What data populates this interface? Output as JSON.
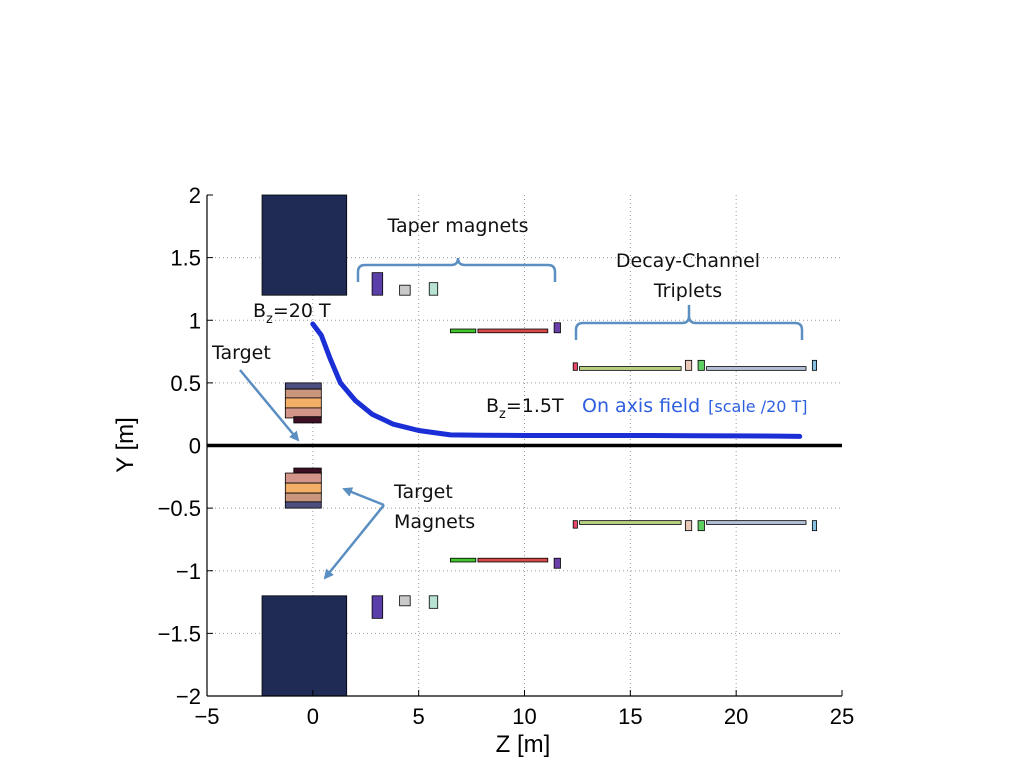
{
  "chart_data": {
    "type": "scatter",
    "xlabel": "Z [m]",
    "ylabel": "Y [m]",
    "xlim": [
      -5,
      25
    ],
    "ylim": [
      -2,
      2
    ],
    "x_ticks": [
      "−5",
      "0",
      "5",
      "10",
      "15",
      "20",
      "25"
    ],
    "y_ticks": [
      "2",
      "1.5",
      "1",
      "0.5",
      "0",
      "−0.5",
      "−1",
      "−1.5",
      "−2"
    ],
    "grid": true,
    "axis_line_y": 0,
    "series": [
      {
        "name": "On axis field",
        "color": "#1b2fd6",
        "x": [
          0,
          0.4,
          0.8,
          1.3,
          2.0,
          2.8,
          3.8,
          5.0,
          6.5,
          8,
          10,
          12,
          14,
          16,
          18,
          20,
          22,
          23
        ],
        "y": [
          0.97,
          0.88,
          0.7,
          0.5,
          0.36,
          0.25,
          0.17,
          0.12,
          0.085,
          0.082,
          0.08,
          0.08,
          0.08,
          0.08,
          0.078,
          0.077,
          0.075,
          0.073
        ]
      }
    ],
    "magnets": [
      {
        "kind": "big-coil",
        "color": "#1f2a55",
        "z0": -2.4,
        "z1": 1.6,
        "y0": 1.2,
        "y1": 2.0
      },
      {
        "kind": "big-coil",
        "color": "#1f2a55",
        "z0": -2.4,
        "z1": 1.6,
        "y0": -2.0,
        "y1": -1.2
      },
      {
        "kind": "target-coil",
        "color": "#4b4f7e",
        "z0": -1.3,
        "z1": 0.4,
        "y0": 0.45,
        "y1": 0.5
      },
      {
        "kind": "target-coil",
        "color": "#c9957d",
        "z0": -1.3,
        "z1": 0.4,
        "y0": 0.38,
        "y1": 0.45
      },
      {
        "kind": "target-coil",
        "color": "#f3ae68",
        "z0": -1.3,
        "z1": 0.4,
        "y0": 0.3,
        "y1": 0.38
      },
      {
        "kind": "target-coil",
        "color": "#d39489",
        "z0": -1.3,
        "z1": 0.4,
        "y0": 0.22,
        "y1": 0.3
      },
      {
        "kind": "target-coil",
        "color": "#3d0f22",
        "z0": -0.9,
        "z1": 0.4,
        "y0": 0.18,
        "y1": 0.23
      },
      {
        "kind": "target-coil",
        "color": "#3d0f22",
        "z0": -0.9,
        "z1": 0.4,
        "y0": -0.23,
        "y1": -0.18
      },
      {
        "kind": "target-coil",
        "color": "#d39489",
        "z0": -1.3,
        "z1": 0.4,
        "y0": -0.3,
        "y1": -0.22
      },
      {
        "kind": "target-coil",
        "color": "#f3ae68",
        "z0": -1.3,
        "z1": 0.4,
        "y0": -0.38,
        "y1": -0.3
      },
      {
        "kind": "target-coil",
        "color": "#c9957d",
        "z0": -1.3,
        "z1": 0.4,
        "y0": -0.45,
        "y1": -0.38
      },
      {
        "kind": "target-coil",
        "color": "#4b4f7e",
        "z0": -1.3,
        "z1": 0.4,
        "y0": -0.5,
        "y1": -0.45
      },
      {
        "kind": "taper",
        "color": "#5a3fa8",
        "z0": 2.8,
        "z1": 3.3,
        "y0": 1.2,
        "y1": 1.38
      },
      {
        "kind": "taper",
        "color": "#c9c9c9",
        "z0": 4.1,
        "z1": 4.6,
        "y0": 1.2,
        "y1": 1.28
      },
      {
        "kind": "taper",
        "color": "#b8e3d2",
        "z0": 5.5,
        "z1": 5.9,
        "y0": 1.2,
        "y1": 1.3
      },
      {
        "kind": "taper",
        "color": "#5a3fa8",
        "z0": 2.8,
        "z1": 3.3,
        "y0": -1.38,
        "y1": -1.2
      },
      {
        "kind": "taper",
        "color": "#c9c9c9",
        "z0": 4.1,
        "z1": 4.6,
        "y0": -1.28,
        "y1": -1.2
      },
      {
        "kind": "taper",
        "color": "#b8e3d2",
        "z0": 5.5,
        "z1": 5.9,
        "y0": -1.3,
        "y1": -1.2
      },
      {
        "kind": "taper",
        "color": "#42c42d",
        "z0": 6.5,
        "z1": 7.7,
        "y0": 0.9,
        "y1": 0.93
      },
      {
        "kind": "taper",
        "color": "#d64a4a",
        "z0": 7.8,
        "z1": 11.1,
        "y0": 0.9,
        "y1": 0.93
      },
      {
        "kind": "taper",
        "color": "#6a3fa8",
        "z0": 11.4,
        "z1": 11.7,
        "y0": 0.9,
        "y1": 0.98
      },
      {
        "kind": "taper",
        "color": "#42c42d",
        "z0": 6.5,
        "z1": 7.7,
        "y0": -0.93,
        "y1": -0.9
      },
      {
        "kind": "taper",
        "color": "#d64a4a",
        "z0": 7.8,
        "z1": 11.1,
        "y0": -0.93,
        "y1": -0.9
      },
      {
        "kind": "taper",
        "color": "#6a3fa8",
        "z0": 11.4,
        "z1": 11.7,
        "y0": -0.98,
        "y1": -0.9
      },
      {
        "kind": "triplet",
        "color": "#e8496b",
        "z0": 12.3,
        "z1": 12.5,
        "y0": 0.6,
        "y1": 0.66
      },
      {
        "kind": "triplet",
        "color": "#b9d17e",
        "z0": 12.6,
        "z1": 17.4,
        "y0": 0.6,
        "y1": 0.63
      },
      {
        "kind": "triplet",
        "color": "#e8c8b8",
        "z0": 17.6,
        "z1": 17.9,
        "y0": 0.6,
        "y1": 0.68
      },
      {
        "kind": "triplet",
        "color": "#5fcf64",
        "z0": 18.2,
        "z1": 18.5,
        "y0": 0.6,
        "y1": 0.68
      },
      {
        "kind": "triplet",
        "color": "#b3bfd6",
        "z0": 18.6,
        "z1": 23.3,
        "y0": 0.6,
        "y1": 0.63
      },
      {
        "kind": "triplet",
        "color": "#87c1e1",
        "z0": 23.6,
        "z1": 23.8,
        "y0": 0.6,
        "y1": 0.68
      },
      {
        "kind": "triplet",
        "color": "#e8496b",
        "z0": 12.3,
        "z1": 12.5,
        "y0": -0.66,
        "y1": -0.6
      },
      {
        "kind": "triplet",
        "color": "#b9d17e",
        "z0": 12.6,
        "z1": 17.4,
        "y0": -0.63,
        "y1": -0.6
      },
      {
        "kind": "triplet",
        "color": "#e8c8b8",
        "z0": 17.6,
        "z1": 17.9,
        "y0": -0.68,
        "y1": -0.6
      },
      {
        "kind": "triplet",
        "color": "#5fcf64",
        "z0": 18.2,
        "z1": 18.5,
        "y0": -0.68,
        "y1": -0.6
      },
      {
        "kind": "triplet",
        "color": "#b3bfd6",
        "z0": 18.6,
        "z1": 23.3,
        "y0": -0.63,
        "y1": -0.6
      },
      {
        "kind": "triplet",
        "color": "#87c1e1",
        "z0": 23.6,
        "z1": 23.8,
        "y0": -0.68,
        "y1": -0.6
      }
    ],
    "annotations": {
      "taper_magnets": "Taper magnets",
      "decay_channel_line1": "Decay-Channel",
      "decay_channel_line2": "Triplets",
      "bz_high_base": "B",
      "bz_high_sub": "z",
      "bz_high_value": "=20 T",
      "bz_low_base": "B",
      "bz_low_sub": "z",
      "bz_low_value": "=1.5T",
      "target": "Target",
      "target_magnets_line1": "Target",
      "target_magnets_line2": "Magnets",
      "on_axis_field": "On axis field",
      "scale_note": "[scale /20 T]"
    },
    "annotation_colors": {
      "arrow": "#5b8fc2",
      "brace": "#5b8fc2",
      "field_text": "#2e5fe0"
    }
  }
}
